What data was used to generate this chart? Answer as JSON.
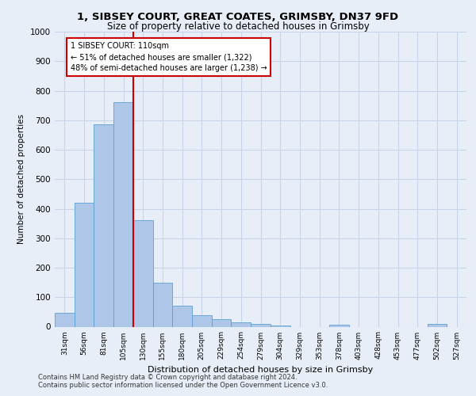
{
  "title_line1": "1, SIBSEY COURT, GREAT COATES, GRIMSBY, DN37 9FD",
  "title_line2": "Size of property relative to detached houses in Grimsby",
  "xlabel": "Distribution of detached houses by size in Grimsby",
  "ylabel": "Number of detached properties",
  "categories": [
    "31sqm",
    "56sqm",
    "81sqm",
    "105sqm",
    "130sqm",
    "155sqm",
    "180sqm",
    "205sqm",
    "229sqm",
    "254sqm",
    "279sqm",
    "304sqm",
    "329sqm",
    "353sqm",
    "378sqm",
    "403sqm",
    "428sqm",
    "453sqm",
    "477sqm",
    "502sqm",
    "527sqm"
  ],
  "values": [
    48,
    420,
    685,
    760,
    360,
    150,
    70,
    38,
    25,
    15,
    10,
    5,
    0,
    0,
    8,
    0,
    0,
    0,
    0,
    10,
    0
  ],
  "bar_color": "#aec6e8",
  "bar_edge_color": "#5a9fd4",
  "vline_x": 3.5,
  "vline_color": "#cc0000",
  "annotation_text": "1 SIBSEY COURT: 110sqm\n← 51% of detached houses are smaller (1,322)\n48% of semi-detached houses are larger (1,238) →",
  "annotation_box_color": "#ffffff",
  "annotation_box_edge": "#cc0000",
  "ylim": [
    0,
    1000
  ],
  "yticks": [
    0,
    100,
    200,
    300,
    400,
    500,
    600,
    700,
    800,
    900,
    1000
  ],
  "grid_color": "#c8d4e8",
  "bg_color": "#e8eef8",
  "footer_line1": "Contains HM Land Registry data © Crown copyright and database right 2024.",
  "footer_line2": "Contains public sector information licensed under the Open Government Licence v3.0."
}
